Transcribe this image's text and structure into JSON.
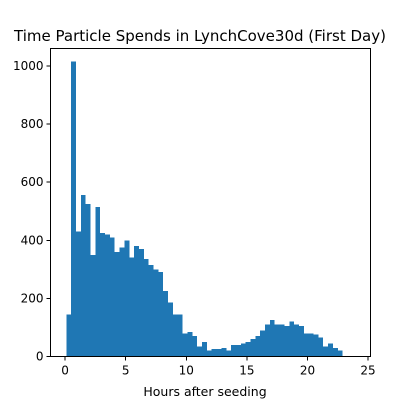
{
  "chart_data": {
    "type": "bar",
    "title": "Time Particle Spends in LynchCove30d (First Day)",
    "xlabel": "Hours after seeding",
    "ylabel": "",
    "bar_color": "#1f77b4",
    "xlim": [
      -1.2,
      25.2
    ],
    "ylim": [
      0,
      1060
    ],
    "xticks": [
      0,
      5,
      10,
      15,
      20,
      25
    ],
    "yticks": [
      0,
      200,
      400,
      600,
      800,
      1000
    ],
    "bin_width": 0.4,
    "bin_start": 0.1,
    "values": [
      145,
      1015,
      430,
      555,
      525,
      350,
      515,
      425,
      420,
      410,
      360,
      375,
      400,
      340,
      380,
      370,
      335,
      315,
      300,
      290,
      225,
      185,
      145,
      145,
      80,
      85,
      70,
      35,
      50,
      20,
      25,
      25,
      30,
      20,
      40,
      40,
      45,
      50,
      60,
      70,
      90,
      110,
      125,
      110,
      110,
      105,
      120,
      110,
      105,
      80,
      80,
      75,
      65,
      35,
      45,
      30,
      20
    ]
  }
}
